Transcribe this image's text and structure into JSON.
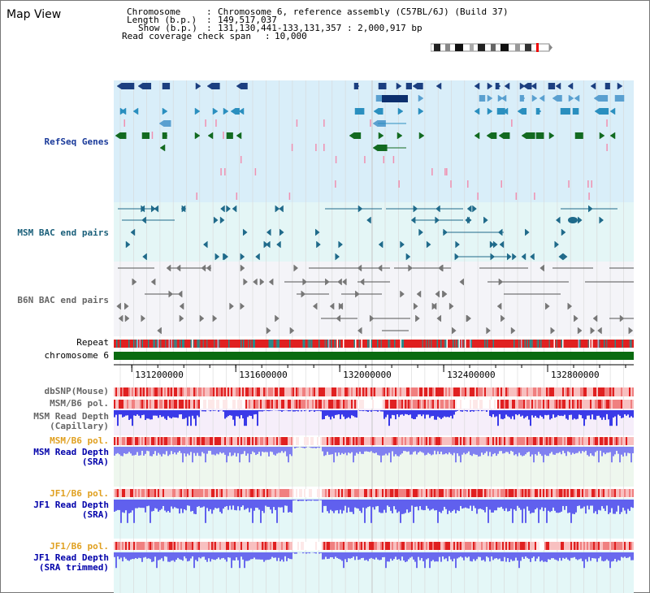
{
  "title": "Map View",
  "info": {
    "chromosome_label": "Chromosome",
    "chromosome_value": "Chromosome 6, reference assembly (C57BL/6J) (Build 37)",
    "length_label": "Length (b.p.)",
    "length_value": "149,517,037",
    "show_label": "Show (b.p.)",
    "show_value": "131,130,441-133,131,357 : 2,000,917 bp",
    "coverage_label": "Read coverage check span",
    "coverage_value": "10,000"
  },
  "tracks": {
    "refseq": "RefSeq Genes",
    "msm_bac": "MSM BAC end pairs",
    "b6n_bac": "B6N BAC end pairs",
    "repeat": "Repeat",
    "chromosome": "chromosome 6",
    "dbsnp": "dbSNP(Mouse)",
    "msm_b6_pol_1": "MSM/B6 pol.",
    "msm_read_depth_cap_1": "MSM Read Depth",
    "msm_read_depth_cap_2": "(Capillary)",
    "msm_b6_pol_2": "MSM/B6 pol.",
    "msm_read_depth_sra_1": "MSM Read Depth",
    "msm_read_depth_sra_2": "(SRA)",
    "jf1_b6_pol_1": "JF1/B6 pol.",
    "jf1_read_depth_sra_1": "JF1 Read Depth",
    "jf1_read_depth_sra_2": "(SRA)",
    "jf1_b6_pol_2": "JF1/B6 pol.",
    "jf1_read_depth_trim_1": "JF1 Read Depth",
    "jf1_read_depth_trim_2": "(SRA trimmed)"
  },
  "axis": {
    "ticks": [
      "131200000",
      "131600000",
      "132000000",
      "132400000",
      "132800000"
    ],
    "tick_values": [
      131200000,
      131600000,
      132000000,
      132400000,
      132800000
    ],
    "range": [
      131130441,
      133131357
    ]
  },
  "colors": {
    "refseq_bg": "#d9eef9",
    "msm_bg": "#e4f6f6",
    "b6n_bg": "#f4f4f8",
    "chromosome_bar": "#0a6b10",
    "cap_bg": "#f6eefa",
    "sra_bg": "#eef7ee",
    "jf1_bg": "#e4f7f7",
    "depth_blue": "#4a55e6",
    "pol_red": "#e53030"
  }
}
